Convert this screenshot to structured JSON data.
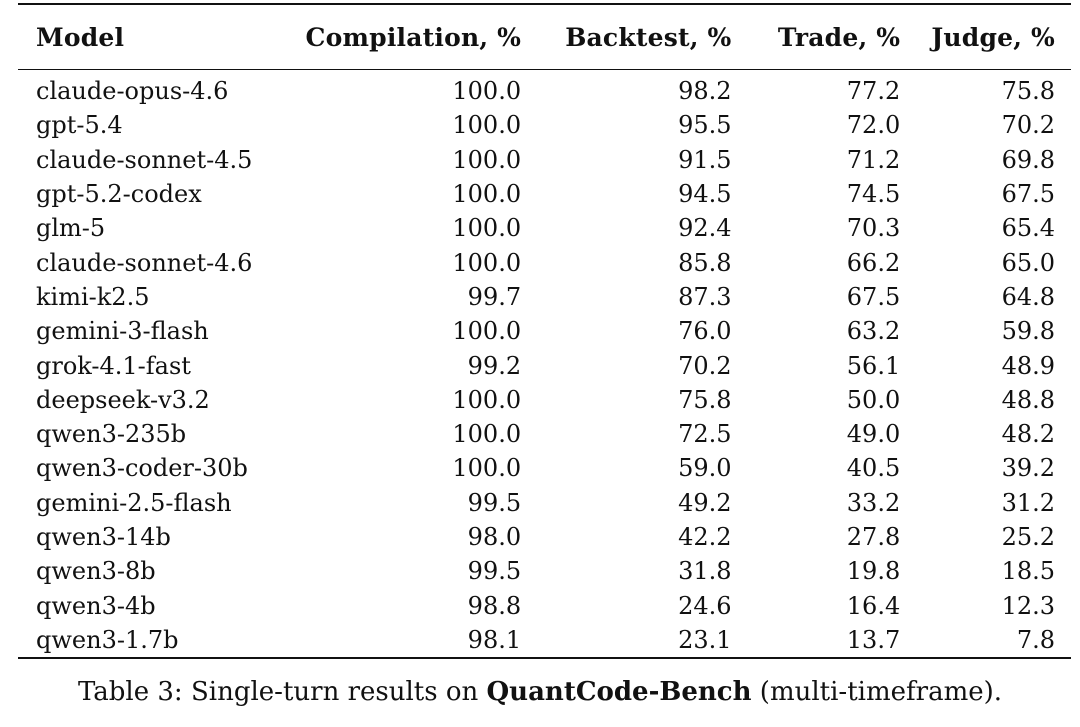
{
  "table": {
    "headers": {
      "model": "Model",
      "compilation": "Compilation, %",
      "backtest": "Backtest, %",
      "trade": "Trade, %",
      "judge": "Judge, %"
    },
    "rows": [
      {
        "model": "claude-opus-4.6",
        "compilation": "100.0",
        "backtest": "98.2",
        "trade": "77.2",
        "judge": "75.8"
      },
      {
        "model": "gpt-5.4",
        "compilation": "100.0",
        "backtest": "95.5",
        "trade": "72.0",
        "judge": "70.2"
      },
      {
        "model": "claude-sonnet-4.5",
        "compilation": "100.0",
        "backtest": "91.5",
        "trade": "71.2",
        "judge": "69.8"
      },
      {
        "model": "gpt-5.2-codex",
        "compilation": "100.0",
        "backtest": "94.5",
        "trade": "74.5",
        "judge": "67.5"
      },
      {
        "model": "glm-5",
        "compilation": "100.0",
        "backtest": "92.4",
        "trade": "70.3",
        "judge": "65.4"
      },
      {
        "model": "claude-sonnet-4.6",
        "compilation": "100.0",
        "backtest": "85.8",
        "trade": "66.2",
        "judge": "65.0"
      },
      {
        "model": "kimi-k2.5",
        "compilation": "99.7",
        "backtest": "87.3",
        "trade": "67.5",
        "judge": "64.8"
      },
      {
        "model": "gemini-3-flash",
        "compilation": "100.0",
        "backtest": "76.0",
        "trade": "63.2",
        "judge": "59.8"
      },
      {
        "model": "grok-4.1-fast",
        "compilation": "99.2",
        "backtest": "70.2",
        "trade": "56.1",
        "judge": "48.9"
      },
      {
        "model": "deepseek-v3.2",
        "compilation": "100.0",
        "backtest": "75.8",
        "trade": "50.0",
        "judge": "48.8"
      },
      {
        "model": "qwen3-235b",
        "compilation": "100.0",
        "backtest": "72.5",
        "trade": "49.0",
        "judge": "48.2"
      },
      {
        "model": "qwen3-coder-30b",
        "compilation": "100.0",
        "backtest": "59.0",
        "trade": "40.5",
        "judge": "39.2"
      },
      {
        "model": "gemini-2.5-flash",
        "compilation": "99.5",
        "backtest": "49.2",
        "trade": "33.2",
        "judge": "31.2"
      },
      {
        "model": "qwen3-14b",
        "compilation": "98.0",
        "backtest": "42.2",
        "trade": "27.8",
        "judge": "25.2"
      },
      {
        "model": "qwen3-8b",
        "compilation": "99.5",
        "backtest": "31.8",
        "trade": "19.8",
        "judge": "18.5"
      },
      {
        "model": "qwen3-4b",
        "compilation": "98.8",
        "backtest": "24.6",
        "trade": "16.4",
        "judge": "12.3"
      },
      {
        "model": "qwen3-1.7b",
        "compilation": "98.1",
        "backtest": "23.1",
        "trade": "13.7",
        "judge": "7.8"
      }
    ]
  },
  "caption": {
    "prefix": "Table 3: Single-turn results on ",
    "bold": "QuantCode-Bench",
    "suffix": " (multi-timeframe)."
  }
}
